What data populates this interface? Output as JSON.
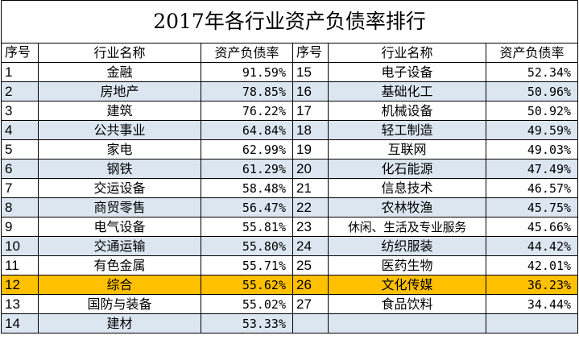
{
  "title": "2017年各行业资产负债率排行",
  "headers": {
    "index": "序号",
    "industry": "行业名称",
    "ratio": "资产负债率"
  },
  "rows": [
    {
      "left": {
        "idx": "1",
        "name": "金融",
        "val": "91.59%"
      },
      "right": {
        "idx": "15",
        "name": "电子设备",
        "val": "52.34%"
      }
    },
    {
      "left": {
        "idx": "2",
        "name": "房地产",
        "val": "78.85%"
      },
      "right": {
        "idx": "16",
        "name": "基础化工",
        "val": "50.96%"
      }
    },
    {
      "left": {
        "idx": "3",
        "name": "建筑",
        "val": "76.22%"
      },
      "right": {
        "idx": "17",
        "name": "机械设备",
        "val": "50.92%"
      }
    },
    {
      "left": {
        "idx": "4",
        "name": "公共事业",
        "val": "64.84%"
      },
      "right": {
        "idx": "18",
        "name": "轻工制造",
        "val": "49.59%"
      }
    },
    {
      "left": {
        "idx": "5",
        "name": "家电",
        "val": "62.99%"
      },
      "right": {
        "idx": "19",
        "name": "互联网",
        "val": "49.03%"
      }
    },
    {
      "left": {
        "idx": "6",
        "name": "钢铁",
        "val": "61.29%"
      },
      "right": {
        "idx": "20",
        "name": "化石能源",
        "val": "47.49%"
      }
    },
    {
      "left": {
        "idx": "7",
        "name": "交运设备",
        "val": "58.48%"
      },
      "right": {
        "idx": "21",
        "name": "信息技术",
        "val": "46.57%"
      }
    },
    {
      "left": {
        "idx": "8",
        "name": "商贸零售",
        "val": "56.47%"
      },
      "right": {
        "idx": "22",
        "name": "农林牧渔",
        "val": "45.75%"
      }
    },
    {
      "left": {
        "idx": "9",
        "name": "电气设备",
        "val": "55.81%"
      },
      "right": {
        "idx": "23",
        "name": "休闲、生活及专业服务",
        "val": "45.66%"
      }
    },
    {
      "left": {
        "idx": "10",
        "name": "交通运输",
        "val": "55.80%"
      },
      "right": {
        "idx": "24",
        "name": "纺织服装",
        "val": "44.42%"
      }
    },
    {
      "left": {
        "idx": "11",
        "name": "有色金属",
        "val": "55.71%"
      },
      "right": {
        "idx": "25",
        "name": "医药生物",
        "val": "42.01%"
      }
    },
    {
      "left": {
        "idx": "12",
        "name": "综合",
        "val": "55.62%"
      },
      "right": {
        "idx": "26",
        "name": "文化传媒",
        "val": "36.23%"
      }
    },
    {
      "left": {
        "idx": "13",
        "name": "国防与装备",
        "val": "55.02%"
      },
      "right": {
        "idx": "27",
        "name": "食品饮料",
        "val": "34.44%"
      }
    },
    {
      "left": {
        "idx": "14",
        "name": "建材",
        "val": "53.33%"
      },
      "right": {
        "idx": "",
        "name": "",
        "val": ""
      }
    }
  ],
  "colors": {
    "row_band": "#dce6f1",
    "highlight": "#ffc000",
    "grid": "#000000"
  },
  "highlight_row_index": "12"
}
